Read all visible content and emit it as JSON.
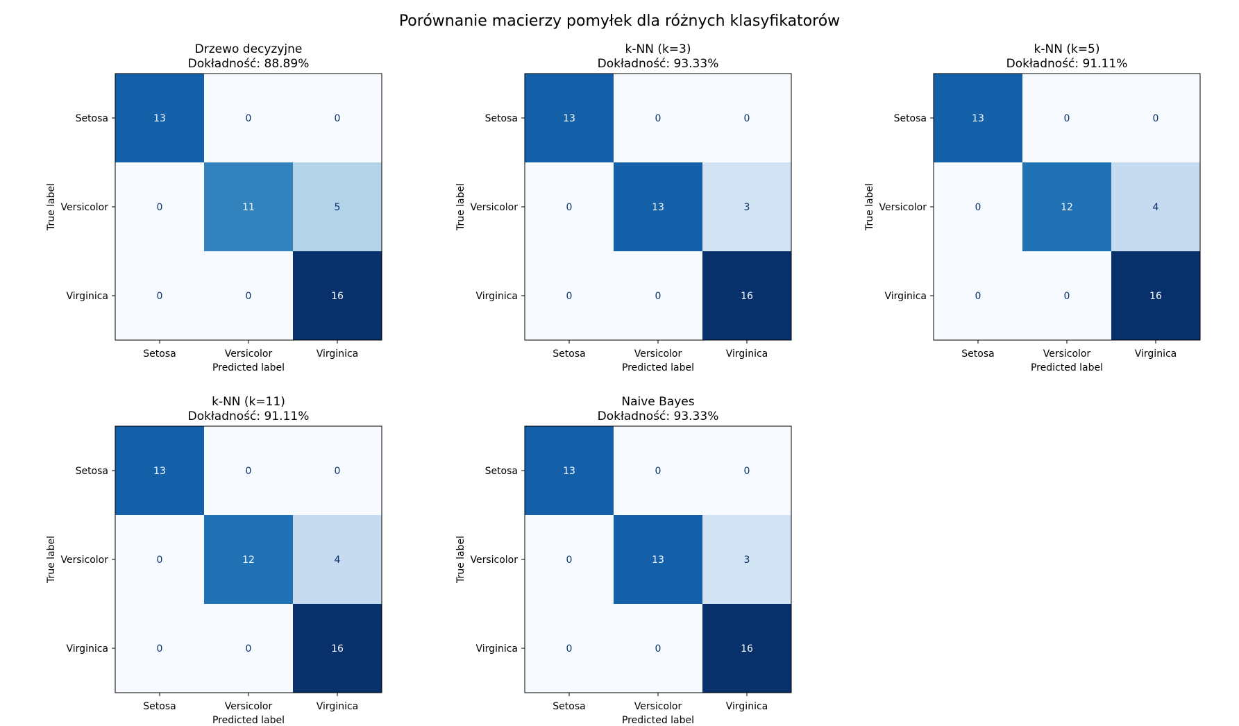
{
  "figure": {
    "title": "Porównanie macierzy pomyłek dla różnych klasyfikatorów"
  },
  "chart_data": [
    {
      "type": "heatmap",
      "title": "Drzewo decyzyjne",
      "subtitle": "Dokładność: 88.89%",
      "xlabel": "Predicted label",
      "ylabel": "True label",
      "x_categories": [
        "Setosa",
        "Versicolor",
        "Virginica"
      ],
      "y_categories": [
        "Setosa",
        "Versicolor",
        "Virginica"
      ],
      "matrix": [
        [
          13,
          0,
          0
        ],
        [
          0,
          11,
          5
        ],
        [
          0,
          0,
          16
        ]
      ],
      "colormap": "Blues"
    },
    {
      "type": "heatmap",
      "title": "k-NN (k=3)",
      "subtitle": "Dokładność: 93.33%",
      "xlabel": "Predicted label",
      "ylabel": "True label",
      "x_categories": [
        "Setosa",
        "Versicolor",
        "Virginica"
      ],
      "y_categories": [
        "Setosa",
        "Versicolor",
        "Virginica"
      ],
      "matrix": [
        [
          13,
          0,
          0
        ],
        [
          0,
          13,
          3
        ],
        [
          0,
          0,
          16
        ]
      ],
      "colormap": "Blues"
    },
    {
      "type": "heatmap",
      "title": "k-NN (k=5)",
      "subtitle": "Dokładność: 91.11%",
      "xlabel": "Predicted label",
      "ylabel": "True label",
      "x_categories": [
        "Setosa",
        "Versicolor",
        "Virginica"
      ],
      "y_categories": [
        "Setosa",
        "Versicolor",
        "Virginica"
      ],
      "matrix": [
        [
          13,
          0,
          0
        ],
        [
          0,
          12,
          4
        ],
        [
          0,
          0,
          16
        ]
      ],
      "colormap": "Blues"
    },
    {
      "type": "heatmap",
      "title": "k-NN (k=11)",
      "subtitle": "Dokładność: 91.11%",
      "xlabel": "Predicted label",
      "ylabel": "True label",
      "x_categories": [
        "Setosa",
        "Versicolor",
        "Virginica"
      ],
      "y_categories": [
        "Setosa",
        "Versicolor",
        "Virginica"
      ],
      "matrix": [
        [
          13,
          0,
          0
        ],
        [
          0,
          12,
          4
        ],
        [
          0,
          0,
          16
        ]
      ],
      "colormap": "Blues"
    },
    {
      "type": "heatmap",
      "title": "Naive Bayes",
      "subtitle": "Dokładność: 93.33%",
      "xlabel": "Predicted label",
      "ylabel": "True label",
      "x_categories": [
        "Setosa",
        "Versicolor",
        "Virginica"
      ],
      "y_categories": [
        "Setosa",
        "Versicolor",
        "Virginica"
      ],
      "matrix": [
        [
          13,
          0,
          0
        ],
        [
          0,
          13,
          3
        ],
        [
          0,
          0,
          16
        ]
      ],
      "colormap": "Blues"
    }
  ]
}
